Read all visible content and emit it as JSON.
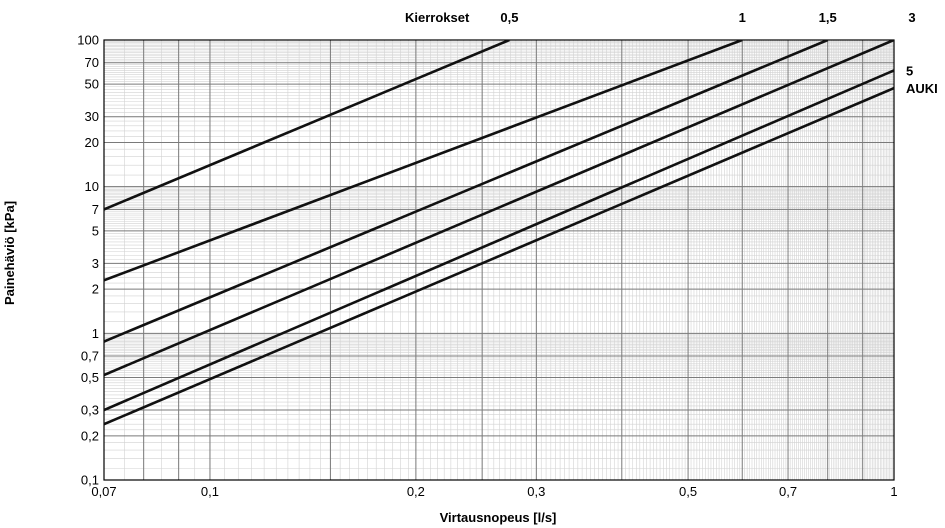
{
  "chart_data": {
    "type": "line",
    "x_scale": "log",
    "y_scale": "log",
    "xlim": [
      0.07,
      1
    ],
    "ylim": [
      0.1,
      100
    ],
    "xlabel": "Virtausnopeus [l/s]",
    "ylabel": "Painehäviö [kPa]",
    "x_ticks": [
      {
        "v": 0.07,
        "label": "0,07"
      },
      {
        "v": 0.1,
        "label": "0,1"
      },
      {
        "v": 0.2,
        "label": "0,2"
      },
      {
        "v": 0.3,
        "label": "0,3"
      },
      {
        "v": 0.5,
        "label": "0,5"
      },
      {
        "v": 0.7,
        "label": "0,7"
      },
      {
        "v": 1,
        "label": "1"
      }
    ],
    "y_ticks": [
      {
        "v": 0.1,
        "label": "0,1"
      },
      {
        "v": 0.2,
        "label": "0,2"
      },
      {
        "v": 0.3,
        "label": "0,3"
      },
      {
        "v": 0.5,
        "label": "0,5"
      },
      {
        "v": 0.7,
        "label": "0,7"
      },
      {
        "v": 1,
        "label": "1"
      },
      {
        "v": 2,
        "label": "2"
      },
      {
        "v": 3,
        "label": "3"
      },
      {
        "v": 5,
        "label": "5"
      },
      {
        "v": 7,
        "label": "7"
      },
      {
        "v": 10,
        "label": "10"
      },
      {
        "v": 20,
        "label": "20"
      },
      {
        "v": 30,
        "label": "30"
      },
      {
        "v": 50,
        "label": "50"
      },
      {
        "v": 70,
        "label": "70"
      },
      {
        "v": 100,
        "label": "100"
      }
    ],
    "grid": true,
    "header_label": "Kierrokset",
    "series": [
      {
        "name": "0,5",
        "x": [
          0.07,
          0.274
        ],
        "y": [
          7.0,
          100
        ]
      },
      {
        "name": "1",
        "x": [
          0.07,
          0.6
        ],
        "y": [
          2.3,
          100
        ]
      },
      {
        "name": "1,5",
        "x": [
          0.07,
          0.8
        ],
        "y": [
          0.88,
          100
        ]
      },
      {
        "name": "3",
        "x": [
          0.07,
          1.0
        ],
        "y": [
          0.52,
          100
        ]
      },
      {
        "name": "5",
        "x": [
          0.07,
          1.0
        ],
        "y": [
          0.3,
          62
        ]
      },
      {
        "name": "AUKI",
        "x": [
          0.07,
          1.0
        ],
        "y": [
          0.24,
          47
        ]
      }
    ]
  }
}
